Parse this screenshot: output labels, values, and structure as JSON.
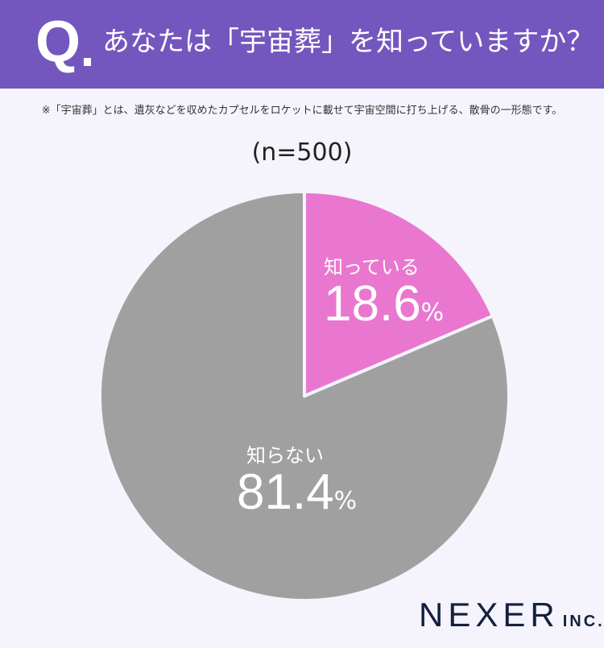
{
  "header": {
    "q_mark": "Q",
    "question": "あなたは「宇宙葬」を知っていますか？",
    "bg_color": "#7357be"
  },
  "note": "※「宇宙葬」とは、遺灰などを収めたカプセルをロケットに載せて宇宙空間に打ち上げる、散骨の一形態です。",
  "sample": "(n=500)",
  "slices": [
    {
      "label": "知っている",
      "value": "18.6",
      "unit": "%",
      "color": "#ea77cf"
    },
    {
      "label": "知らない",
      "value": "81.4",
      "unit": "%",
      "color": "#a0a0a0"
    }
  ],
  "logo": {
    "main": "NEXER",
    "suffix": "INC."
  },
  "chart_data": {
    "type": "pie",
    "title": "あなたは「宇宙葬」を知っていますか？",
    "subtitle": "(n=500)",
    "categories": [
      "知っている",
      "知らない"
    ],
    "values": [
      18.6,
      81.4
    ],
    "unit": "%",
    "colors": [
      "#ea77cf",
      "#a0a0a0"
    ],
    "start_angle": "12 o'clock, clockwise",
    "legend": "inline labels"
  }
}
